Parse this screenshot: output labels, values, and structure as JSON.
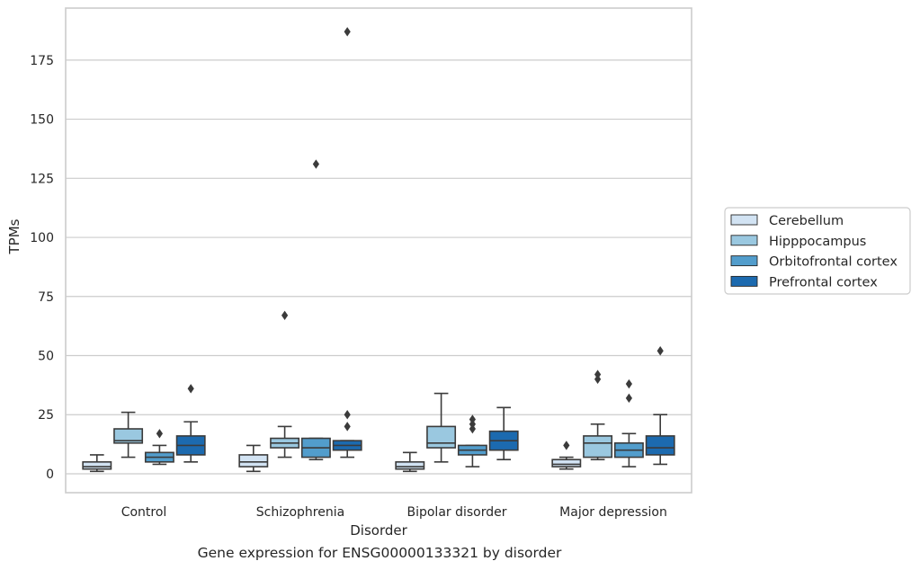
{
  "caption": "Gene expression for ENSG00000133321 by disorder",
  "chart_data": {
    "type": "box",
    "xlabel": "Disorder",
    "ylabel": "TPMs",
    "ylim": [
      -8,
      197
    ],
    "yticks": [
      0,
      25,
      50,
      75,
      100,
      125,
      150,
      175
    ],
    "grid": "horizontal",
    "legend_position": "right",
    "categories": [
      "Control",
      "Schizophrenia",
      "Bipolar disorder",
      "Major depression"
    ],
    "series": [
      {
        "name": "Cerebellum",
        "color": "#d2e3f3",
        "boxes": [
          {
            "whislo": 1,
            "q1": 2,
            "med": 3,
            "q3": 5,
            "whishi": 8,
            "fliers": []
          },
          {
            "whislo": 1,
            "q1": 3,
            "med": 5,
            "q3": 8,
            "whishi": 12,
            "fliers": []
          },
          {
            "whislo": 1,
            "q1": 2,
            "med": 3,
            "q3": 5,
            "whishi": 9,
            "fliers": []
          },
          {
            "whislo": 2,
            "q1": 3,
            "med": 4,
            "q3": 6,
            "whishi": 7,
            "fliers": [
              12
            ]
          }
        ]
      },
      {
        "name": "Hipppocampus",
        "color": "#9ac8e0",
        "boxes": [
          {
            "whislo": 7,
            "q1": 13,
            "med": 14,
            "q3": 19,
            "whishi": 26,
            "fliers": []
          },
          {
            "whislo": 7,
            "q1": 11,
            "med": 13,
            "q3": 15,
            "whishi": 20,
            "fliers": [
              67
            ]
          },
          {
            "whislo": 5,
            "q1": 11,
            "med": 13,
            "q3": 20,
            "whishi": 34,
            "fliers": []
          },
          {
            "whislo": 6,
            "q1": 7,
            "med": 13,
            "q3": 16,
            "whishi": 21,
            "fliers": [
              40,
              42
            ]
          }
        ]
      },
      {
        "name": "Orbitofrontal cortex",
        "color": "#529dcc",
        "boxes": [
          {
            "whislo": 4,
            "q1": 5,
            "med": 7,
            "q3": 9,
            "whishi": 12,
            "fliers": [
              17
            ]
          },
          {
            "whislo": 6,
            "q1": 7,
            "med": 11,
            "q3": 15,
            "whishi": 15,
            "fliers": [
              131
            ]
          },
          {
            "whislo": 3,
            "q1": 8,
            "med": 10,
            "q3": 12,
            "whishi": 12,
            "fliers": [
              19,
              21,
              23
            ]
          },
          {
            "whislo": 3,
            "q1": 7,
            "med": 10,
            "q3": 13,
            "whishi": 17,
            "fliers": [
              32,
              38
            ]
          }
        ]
      },
      {
        "name": "Prefrontal cortex",
        "color": "#1c6aaf",
        "boxes": [
          {
            "whislo": 5,
            "q1": 8,
            "med": 12,
            "q3": 16,
            "whishi": 22,
            "fliers": [
              36
            ]
          },
          {
            "whislo": 7,
            "q1": 10,
            "med": 12,
            "q3": 14,
            "whishi": 14,
            "fliers": [
              20,
              25,
              187
            ]
          },
          {
            "whislo": 6,
            "q1": 10,
            "med": 14,
            "q3": 18,
            "whishi": 28,
            "fliers": []
          },
          {
            "whislo": 4,
            "q1": 8,
            "med": 11,
            "q3": 16,
            "whishi": 25,
            "fliers": [
              52
            ]
          }
        ]
      }
    ]
  }
}
